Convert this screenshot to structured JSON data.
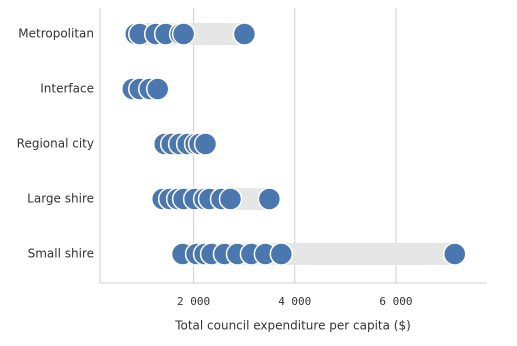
{
  "chart_data": {
    "type": "dot-strip",
    "xlabel": "Total council expenditure per capita ($)",
    "categories": [
      "Metropolitan",
      "Interface",
      "Regional city",
      "Large shire",
      "Small shire"
    ],
    "values": [
      [
        857,
        936,
        1251,
        1448,
        1744,
        1803,
        3005
      ],
      [
        798,
        936,
        1133,
        1291
      ],
      [
        1429,
        1567,
        1724,
        1882,
        2039,
        2118,
        2236
      ],
      [
        1389,
        1527,
        1685,
        1803,
        2020,
        2217,
        2315,
        2552,
        2729,
        3498
      ],
      [
        1783,
        2059,
        2217,
        2355,
        2611,
        2867,
        3143,
        3419,
        3734,
        7163
      ]
    ],
    "color": "#4a77ad",
    "range_color": "#e6e6e6",
    "xlim": [
      150,
      7800
    ],
    "xticks": [
      {
        "value": 2000,
        "label": "2 000"
      },
      {
        "value": 4000,
        "label": "4 000"
      },
      {
        "value": 6000,
        "label": "6 000"
      }
    ],
    "grid": true
  }
}
